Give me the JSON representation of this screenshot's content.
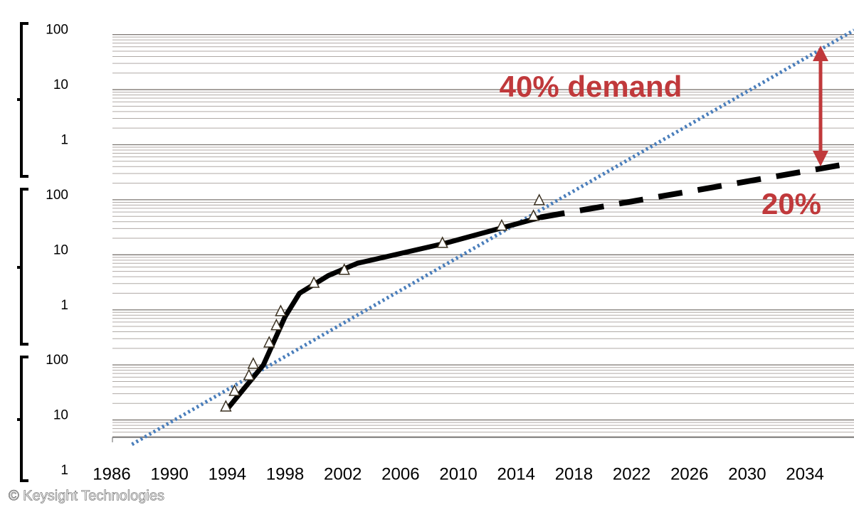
{
  "chart_data": {
    "type": "line",
    "log_y": true,
    "grid": true,
    "minor_grid": true,
    "xlim": [
      1986,
      2037
    ],
    "xticks": [
      1986,
      1990,
      1994,
      1998,
      2002,
      2006,
      2010,
      2014,
      2018,
      2022,
      2026,
      2030,
      2034
    ],
    "ylim": [
      1,
      150000000
    ],
    "yticks": [
      1,
      10,
      100,
      {
        "value": 1000,
        "label": "1"
      },
      {
        "value": 10000,
        "label": "10"
      },
      {
        "value": 100000,
        "label": "100"
      },
      {
        "value": 1000000,
        "label": "1"
      },
      {
        "value": 10000000,
        "label": "10"
      },
      {
        "value": 100000000,
        "label": "100"
      }
    ],
    "series": [
      {
        "color": "#4a7ebb",
        "style": "dotted",
        "x": [
          1987.4,
          2037.4
        ],
        "values": [
          3.6,
          120000000
        ]
      },
      {
        "color": "#000000",
        "style": "solid",
        "x": [
          1994.1,
          1996.5,
          1998,
          1999,
          2001,
          2003,
          2009,
          2015.7
        ],
        "values": [
          17,
          100,
          750,
          2000,
          4200,
          7000,
          16000,
          48000
        ]
      },
      {
        "color": "#000000",
        "style": "dashed",
        "x": [
          2015.7,
          2037.4
        ],
        "values": [
          48000,
          470000
        ]
      },
      {
        "color": "#3a3020",
        "style": "markers",
        "marker": "triangle",
        "x": [
          1993.9,
          1994.5,
          1995.5,
          1995.8,
          1996.9,
          1997.4,
          1997.7,
          2000.0,
          2002.1,
          2008.9,
          2013.0,
          2015.2,
          2015.6
        ],
        "values": [
          17.4,
          33.4,
          64,
          104,
          253,
          520,
          938,
          3070,
          5280,
          16300,
          33600,
          50600,
          97000
        ]
      }
    ],
    "annotations": [
      {
        "text": "40% demand",
        "color": "#c0393b"
      },
      {
        "text": "20%",
        "color": "#c0393b"
      }
    ],
    "credit": "© Keysight Technologies"
  }
}
